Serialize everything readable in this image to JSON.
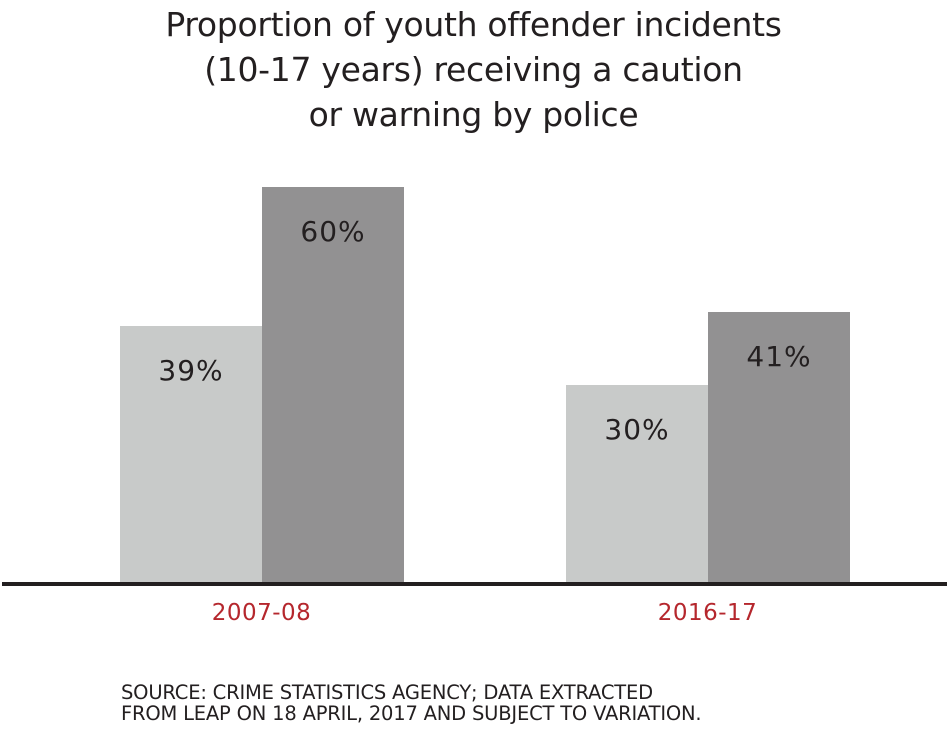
{
  "chart_data": {
    "type": "bar",
    "title": "Proportion of youth offender incidents (10-17 years) receiving a caution or warning by police",
    "title_lines": [
      "Proportion of youth offender incidents",
      "(10-17 years) receiving a caution",
      "or warning by police"
    ],
    "categories": [
      "2007-08",
      "2016-17"
    ],
    "series": [
      {
        "name": "Series A (light grey)",
        "color": "#c8cac9",
        "values": [
          39,
          30
        ],
        "labels": [
          "39%",
          "30%"
        ]
      },
      {
        "name": "Series B (dark grey)",
        "color": "#929192",
        "values": [
          60,
          41
        ],
        "labels": [
          "60%",
          "41%"
        ]
      }
    ],
    "xlabel": "",
    "ylabel": "",
    "ylim": [
      0,
      60
    ],
    "grid": false,
    "legend": "none",
    "category_label_color": "#b5272d",
    "source_lines": [
      "SOURCE: CRIME STATISTICS AGENCY; DATA EXTRACTED",
      "FROM LEAP ON 18 APRIL, 2017 AND SUBJECT TO VARIATION."
    ]
  }
}
